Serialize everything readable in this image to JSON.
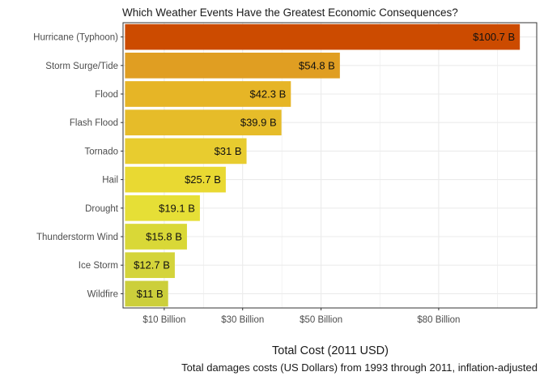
{
  "chart_data": {
    "type": "bar",
    "orientation": "horizontal",
    "title": "Which Weather Events Have the Greatest Economic Consequences?",
    "xlabel": "Total Cost (2011 USD)",
    "caption": "Total damages costs (US Dollars) from 1993 through 2011, inflation-adjusted",
    "xlim": [
      -0.5,
      105
    ],
    "grid": true,
    "x_ticks": [
      {
        "value": 10,
        "label": "$10 Billion"
      },
      {
        "value": 30,
        "label": "$30 Billion"
      },
      {
        "value": 50,
        "label": "$50 Billion"
      },
      {
        "value": 80,
        "label": "$80 Billion"
      }
    ],
    "categories": [
      "Hurricane (Typhoon)",
      "Storm Surge/Tide",
      "Flood",
      "Flash Flood",
      "Tornado",
      "Hail",
      "Drought",
      "Thunderstorm Wind",
      "Ice Storm",
      "Wildfire"
    ],
    "values": [
      100.7,
      54.8,
      42.3,
      39.9,
      31,
      25.7,
      19.1,
      15.8,
      12.7,
      11
    ],
    "value_labels": [
      "$100.7 B",
      "$54.8 B",
      "$42.3 B",
      "$39.9 B",
      "$31 B",
      "$25.7 B",
      "$19.1 B",
      "$15.8 B",
      "$12.7 B",
      "$11 B"
    ],
    "colors": [
      "#cc4b00",
      "#e09e22",
      "#e6b526",
      "#e6bc29",
      "#e8cc2f",
      "#e9d932",
      "#e6df36",
      "#d9d837",
      "#d4d43b",
      "#cccf3b"
    ],
    "panel_border": "#333333",
    "grid_major": "#ebebeb"
  }
}
